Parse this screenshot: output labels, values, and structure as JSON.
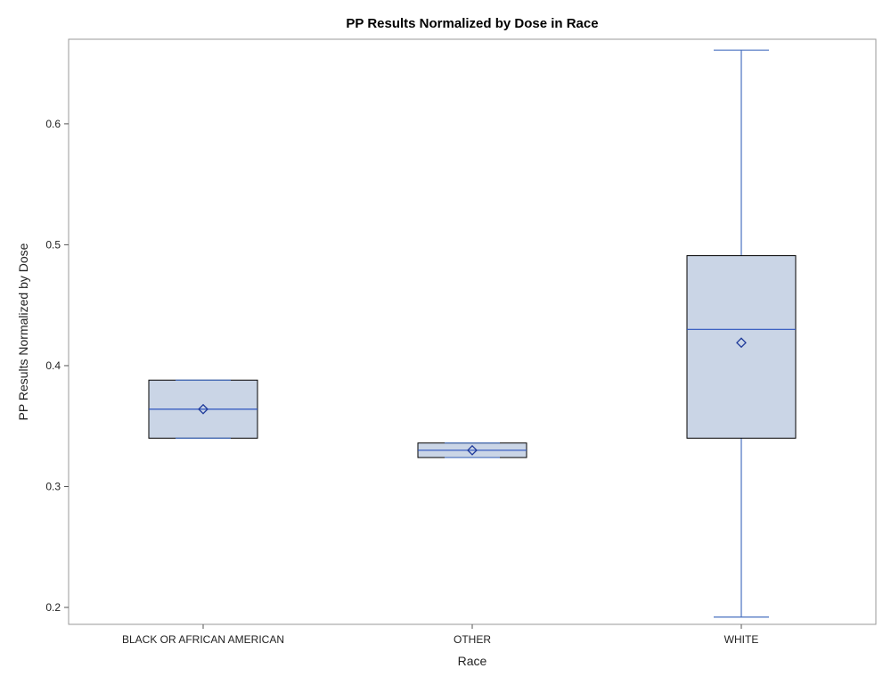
{
  "chart_data": {
    "type": "box",
    "title": "PP Results Normalized by Dose in Race",
    "xlabel": "Race",
    "ylabel": "PP Results Normalized by Dose",
    "categories": [
      "BLACK OR AFRICAN AMERICAN",
      "OTHER",
      "WHITE"
    ],
    "ylim": [
      0.186,
      0.67
    ],
    "yticks": [
      0.2,
      0.3,
      0.4,
      0.5,
      0.6
    ],
    "yticks_labels": [
      "0.2",
      "0.3",
      "0.4",
      "0.5",
      "0.6"
    ],
    "grid": false,
    "legend": "none",
    "boxes": [
      {
        "category": "BLACK OR AFRICAN AMERICAN",
        "min": 0.34,
        "q1": 0.34,
        "median": 0.364,
        "q3": 0.388,
        "max": 0.388,
        "mean": 0.364
      },
      {
        "category": "OTHER",
        "min": 0.324,
        "q1": 0.324,
        "median": 0.33,
        "q3": 0.336,
        "max": 0.336,
        "mean": 0.33
      },
      {
        "category": "WHITE",
        "min": 0.192,
        "q1": 0.34,
        "median": 0.43,
        "q3": 0.491,
        "max": 0.661,
        "mean": 0.419
      }
    ],
    "colors": {
      "box_fill": "#cad5e6",
      "box_outline": "#000000",
      "median_line": "#2a52be",
      "whisker": "#4a72c0",
      "mean_marker": "#1f3a9a",
      "frame": "#9a9a9a"
    }
  }
}
